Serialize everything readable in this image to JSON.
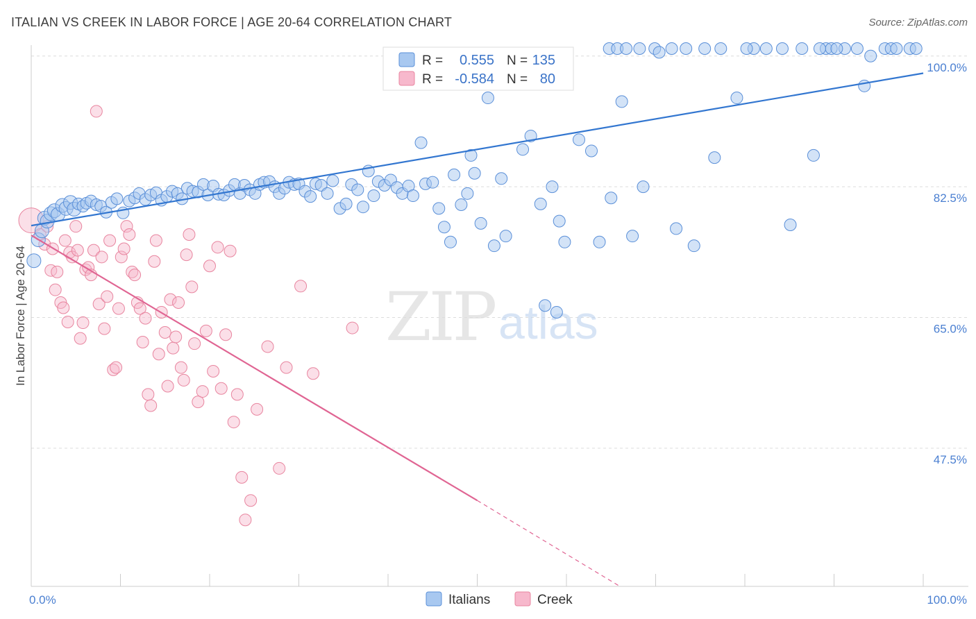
{
  "title": "ITALIAN VS CREEK IN LABOR FORCE | AGE 20-64 CORRELATION CHART",
  "source": "Source: ZipAtlas.com",
  "watermark": {
    "zip": "ZIP",
    "atlas": "atlas"
  },
  "colors": {
    "italians_fill": "#a8c8f0",
    "italians_stroke": "#5a8fd8",
    "italians_line": "#3276d0",
    "creek_fill": "#f7b8cc",
    "creek_stroke": "#e8859f",
    "creek_line": "#e06593",
    "axis_text": "#4a7fd1",
    "grid": "#dcdcdc"
  },
  "legend": {
    "r_label": "R =",
    "n_label": "N =",
    "italians": {
      "r": "0.555",
      "n": "135"
    },
    "creek": {
      "r": "-0.584",
      "n": "80"
    }
  },
  "chart_data": {
    "type": "scatter",
    "title": "ITALIAN VS CREEK IN LABOR FORCE | AGE 20-64 CORRELATION CHART",
    "xlabel": "",
    "ylabel": "In Labor Force | Age 20-64",
    "xlim": [
      0,
      100
    ],
    "ylim": [
      29,
      101
    ],
    "x_tick_labels": [
      "0.0%",
      "100.0%"
    ],
    "y_ticks": [
      100.0,
      82.5,
      65.0,
      47.5
    ],
    "y_tick_labels": [
      "100.0%",
      "82.5%",
      "65.0%",
      "47.5%"
    ],
    "grid": true,
    "legend_position": "top-center",
    "series": [
      {
        "name": "Italians",
        "r": 0.555,
        "n": 135,
        "trend": {
          "x": [
            0,
            100
          ],
          "y": [
            77.3,
            97.7
          ]
        },
        "points": [
          [
            0.3,
            72.6
          ],
          [
            0.8,
            75.4
          ],
          [
            1.2,
            76.6
          ],
          [
            1.5,
            78.3
          ],
          [
            1.8,
            77.9
          ],
          [
            2.2,
            78.9
          ],
          [
            2.6,
            79.3
          ],
          [
            3.0,
            78.8
          ],
          [
            3.5,
            80.0
          ],
          [
            3.9,
            79.6
          ],
          [
            4.4,
            80.4
          ],
          [
            4.8,
            79.5
          ],
          [
            5.3,
            80.2
          ],
          [
            5.8,
            79.9
          ],
          [
            6.2,
            80.3
          ],
          [
            6.7,
            80.6
          ],
          [
            7.3,
            80.1
          ],
          [
            7.8,
            79.9
          ],
          [
            8.4,
            79.1
          ],
          [
            9.0,
            80.4
          ],
          [
            9.6,
            80.9
          ],
          [
            10.3,
            79.0
          ],
          [
            11.0,
            80.6
          ],
          [
            11.6,
            81.0
          ],
          [
            12.1,
            81.6
          ],
          [
            12.8,
            80.8
          ],
          [
            13.4,
            81.4
          ],
          [
            14.0,
            81.7
          ],
          [
            14.6,
            80.7
          ],
          [
            15.2,
            81.2
          ],
          [
            15.8,
            81.9
          ],
          [
            16.4,
            81.6
          ],
          [
            16.9,
            80.9
          ],
          [
            17.5,
            82.3
          ],
          [
            18.1,
            81.9
          ],
          [
            18.7,
            81.8
          ],
          [
            19.3,
            82.8
          ],
          [
            19.8,
            81.4
          ],
          [
            20.4,
            82.6
          ],
          [
            21.0,
            81.5
          ],
          [
            21.6,
            81.4
          ],
          [
            22.2,
            82.0
          ],
          [
            22.8,
            82.8
          ],
          [
            23.4,
            81.6
          ],
          [
            23.9,
            82.7
          ],
          [
            24.5,
            82.1
          ],
          [
            25.1,
            81.6
          ],
          [
            25.6,
            82.8
          ],
          [
            26.1,
            83.1
          ],
          [
            26.7,
            83.2
          ],
          [
            27.3,
            82.5
          ],
          [
            27.8,
            81.6
          ],
          [
            28.4,
            82.3
          ],
          [
            28.9,
            83.1
          ],
          [
            29.5,
            82.8
          ],
          [
            30.0,
            82.9
          ],
          [
            30.7,
            81.9
          ],
          [
            31.3,
            81.2
          ],
          [
            31.9,
            82.9
          ],
          [
            32.5,
            82.7
          ],
          [
            33.2,
            81.6
          ],
          [
            33.8,
            83.3
          ],
          [
            34.6,
            79.6
          ],
          [
            35.3,
            80.2
          ],
          [
            35.9,
            82.8
          ],
          [
            36.6,
            82.1
          ],
          [
            37.2,
            79.8
          ],
          [
            37.8,
            84.6
          ],
          [
            38.4,
            81.3
          ],
          [
            38.9,
            83.2
          ],
          [
            39.6,
            82.7
          ],
          [
            40.3,
            83.4
          ],
          [
            41.0,
            82.4
          ],
          [
            41.6,
            81.6
          ],
          [
            42.3,
            82.6
          ],
          [
            42.8,
            81.3
          ],
          [
            43.7,
            88.4
          ],
          [
            44.2,
            82.9
          ],
          [
            45.0,
            83.1
          ],
          [
            45.7,
            79.6
          ],
          [
            46.3,
            77.1
          ],
          [
            47.0,
            75.1
          ],
          [
            47.4,
            84.1
          ],
          [
            48.2,
            80.1
          ],
          [
            48.9,
            81.6
          ],
          [
            49.3,
            86.7
          ],
          [
            49.7,
            84.3
          ],
          [
            50.4,
            77.6
          ],
          [
            51.2,
            94.4
          ],
          [
            51.9,
            74.6
          ],
          [
            52.7,
            83.6
          ],
          [
            53.2,
            75.9
          ],
          [
            55.1,
            87.5
          ],
          [
            56.0,
            89.3
          ],
          [
            57.1,
            80.2
          ],
          [
            58.4,
            82.5
          ],
          [
            59.2,
            77.9
          ],
          [
            57.6,
            66.6
          ],
          [
            58.9,
            65.7
          ],
          [
            59.8,
            75.1
          ],
          [
            61.4,
            88.8
          ],
          [
            62.8,
            87.3
          ],
          [
            63.7,
            75.1
          ],
          [
            64.8,
            101.0
          ],
          [
            65.7,
            101.0
          ],
          [
            66.7,
            101.0
          ],
          [
            68.2,
            101.0
          ],
          [
            69.9,
            101.0
          ],
          [
            70.4,
            100.5
          ],
          [
            71.8,
            101.0
          ],
          [
            73.4,
            101.0
          ],
          [
            74.3,
            74.6
          ],
          [
            76.6,
            86.4
          ],
          [
            79.1,
            94.4
          ],
          [
            81.0,
            101.0
          ],
          [
            84.2,
            101.0
          ],
          [
            86.4,
            101.0
          ],
          [
            89.1,
            101.0
          ],
          [
            89.7,
            101.0
          ],
          [
            91.2,
            101.0
          ],
          [
            66.2,
            93.9
          ],
          [
            75.5,
            101.0
          ],
          [
            77.3,
            101.0
          ],
          [
            80.2,
            101.0
          ],
          [
            82.4,
            101.0
          ],
          [
            85.1,
            77.4
          ],
          [
            87.7,
            86.7
          ],
          [
            88.4,
            101.0
          ],
          [
            90.3,
            101.0
          ],
          [
            92.6,
            101.0
          ],
          [
            94.1,
            100.0
          ],
          [
            95.7,
            101.0
          ],
          [
            96.4,
            101.0
          ],
          [
            97.0,
            101.0
          ],
          [
            98.5,
            101.0
          ],
          [
            99.2,
            101.0
          ],
          [
            65.0,
            81.0
          ],
          [
            67.4,
            75.9
          ],
          [
            68.6,
            82.5
          ],
          [
            72.3,
            76.9
          ],
          [
            93.4,
            96.0
          ]
        ]
      },
      {
        "name": "Creek",
        "r": -0.584,
        "n": 80,
        "trend": {
          "x": [
            0,
            50
          ],
          "y": [
            76.0,
            40.5
          ],
          "dashed_to": {
            "x": 66,
            "y": 29.0
          }
        },
        "points": [
          [
            0.0,
            78.0
          ],
          [
            1.0,
            76.1
          ],
          [
            1.5,
            74.8
          ],
          [
            1.8,
            77.2
          ],
          [
            2.2,
            71.3
          ],
          [
            2.4,
            74.2
          ],
          [
            2.7,
            68.7
          ],
          [
            2.9,
            71.1
          ],
          [
            3.3,
            67.0
          ],
          [
            3.6,
            66.3
          ],
          [
            3.8,
            75.3
          ],
          [
            4.1,
            64.4
          ],
          [
            4.3,
            73.7
          ],
          [
            4.6,
            73.1
          ],
          [
            5.0,
            77.2
          ],
          [
            5.2,
            74.0
          ],
          [
            5.5,
            62.2
          ],
          [
            5.8,
            64.3
          ],
          [
            6.1,
            71.4
          ],
          [
            6.4,
            71.7
          ],
          [
            6.7,
            70.7
          ],
          [
            7.0,
            74.0
          ],
          [
            7.3,
            92.6
          ],
          [
            7.6,
            66.8
          ],
          [
            7.9,
            73.1
          ],
          [
            8.2,
            63.5
          ],
          [
            8.5,
            67.8
          ],
          [
            8.8,
            75.3
          ],
          [
            9.2,
            58.0
          ],
          [
            9.5,
            58.3
          ],
          [
            9.8,
            66.2
          ],
          [
            10.1,
            73.1
          ],
          [
            10.4,
            74.2
          ],
          [
            10.7,
            77.2
          ],
          [
            11.0,
            76.1
          ],
          [
            11.3,
            71.1
          ],
          [
            11.6,
            70.7
          ],
          [
            11.9,
            67.0
          ],
          [
            12.2,
            66.2
          ],
          [
            12.5,
            61.7
          ],
          [
            12.8,
            64.9
          ],
          [
            13.1,
            54.7
          ],
          [
            13.4,
            53.2
          ],
          [
            13.8,
            72.5
          ],
          [
            14.0,
            75.3
          ],
          [
            14.3,
            60.1
          ],
          [
            14.6,
            65.7
          ],
          [
            15.0,
            63.0
          ],
          [
            15.3,
            55.8
          ],
          [
            15.6,
            67.4
          ],
          [
            15.9,
            60.9
          ],
          [
            16.2,
            62.4
          ],
          [
            16.5,
            67.0
          ],
          [
            16.8,
            58.3
          ],
          [
            17.1,
            56.6
          ],
          [
            17.4,
            73.4
          ],
          [
            17.7,
            76.1
          ],
          [
            18.0,
            69.1
          ],
          [
            18.3,
            61.5
          ],
          [
            18.7,
            53.7
          ],
          [
            19.2,
            55.1
          ],
          [
            19.6,
            63.2
          ],
          [
            20.0,
            71.9
          ],
          [
            20.4,
            57.8
          ],
          [
            20.9,
            74.4
          ],
          [
            21.3,
            55.5
          ],
          [
            21.8,
            62.7
          ],
          [
            22.3,
            73.9
          ],
          [
            22.7,
            51.0
          ],
          [
            23.1,
            54.7
          ],
          [
            23.6,
            43.6
          ],
          [
            24.0,
            37.9
          ],
          [
            24.6,
            40.5
          ],
          [
            25.3,
            52.7
          ],
          [
            26.5,
            61.1
          ],
          [
            27.8,
            44.8
          ],
          [
            28.6,
            58.3
          ],
          [
            30.2,
            69.2
          ],
          [
            31.6,
            57.5
          ],
          [
            36.0,
            63.6
          ]
        ]
      }
    ]
  },
  "legend_bottom": {
    "italians": "Italians",
    "creek": "Creek"
  }
}
